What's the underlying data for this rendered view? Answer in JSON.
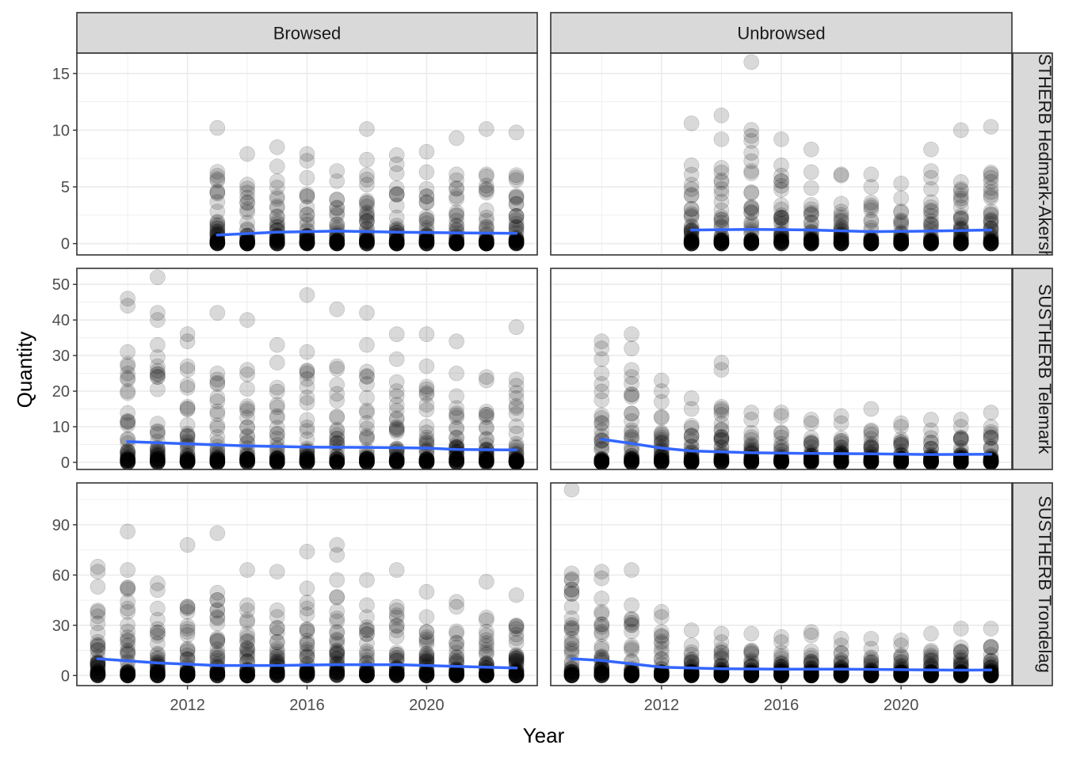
{
  "chart_data": {
    "type": "scatter",
    "xlabel": "Year",
    "ylabel": "Quantity",
    "col_facets": [
      "Browsed",
      "Unbrowsed"
    ],
    "row_facets": [
      {
        "label": "SUSTHERB Hedmark-Akershus",
        "ylim": [
          -1,
          16.8
        ],
        "yticks": [
          0,
          5,
          10,
          15
        ],
        "series": {
          "Browsed": {
            "years": [
              2013,
              2014,
              2015,
              2016,
              2017,
              2018,
              2019,
              2020,
              2021,
              2022,
              2023
            ],
            "max": [
              10.2,
              7.9,
              8.5,
              7.9,
              6.4,
              10.1,
              7.8,
              8.1,
              9.3,
              10.1,
              9.8
            ],
            "outliers": [
              [
                2013,
                5.7
              ],
              [
                2013,
                4.6
              ],
              [
                2014,
                5.2
              ],
              [
                2014,
                4.5
              ],
              [
                2015,
                6.8
              ],
              [
                2015,
                5.5
              ],
              [
                2016,
                7.3
              ],
              [
                2016,
                5.8
              ],
              [
                2017,
                5.5
              ],
              [
                2018,
                7.4
              ],
              [
                2018,
                5.2
              ],
              [
                2019,
                7.0
              ],
              [
                2019,
                6.2
              ],
              [
                2020,
                6.3
              ],
              [
                2021,
                6.1
              ],
              [
                2022,
                6.1
              ],
              [
                2023,
                5.6
              ],
              [
                2023,
                4.1
              ]
            ],
            "smooth": [
              [
                2013,
                0.75
              ],
              [
                2015,
                1.0
              ],
              [
                2017,
                1.1
              ],
              [
                2019,
                1.0
              ],
              [
                2021,
                0.95
              ],
              [
                2023,
                0.9
              ]
            ]
          },
          "Unbrowsed": {
            "years": [
              2013,
              2014,
              2015,
              2016,
              2017,
              2018,
              2019,
              2020,
              2021,
              2022,
              2023
            ],
            "max": [
              10.6,
              11.3,
              16.0,
              9.2,
              8.3,
              6.1,
              6.1,
              5.3,
              8.3,
              10.0,
              10.3
            ],
            "outliers": [
              [
                2013,
                6.9
              ],
              [
                2013,
                4.8
              ],
              [
                2014,
                9.2
              ],
              [
                2014,
                4.4
              ],
              [
                2015,
                8.0
              ],
              [
                2015,
                6.4
              ],
              [
                2016,
                6.9
              ],
              [
                2016,
                6.0
              ],
              [
                2017,
                6.3
              ],
              [
                2018,
                6.0
              ],
              [
                2019,
                5.0
              ],
              [
                2020,
                4.0
              ],
              [
                2021,
                6.4
              ],
              [
                2021,
                5.8
              ],
              [
                2022,
                4.8
              ],
              [
                2023,
                5.8
              ],
              [
                2023,
                4.9
              ]
            ],
            "smooth": [
              [
                2013,
                1.2
              ],
              [
                2015,
                1.25
              ],
              [
                2017,
                1.2
              ],
              [
                2019,
                1.05
              ],
              [
                2021,
                1.1
              ],
              [
                2023,
                1.2
              ]
            ]
          }
        }
      },
      {
        "label": "SUSTHERB Telemark",
        "ylim": [
          -2,
          54.5
        ],
        "yticks": [
          0,
          10,
          20,
          30,
          40,
          50
        ],
        "series": {
          "Browsed": {
            "years": [
              2010,
              2011,
              2012,
              2013,
              2014,
              2015,
              2016,
              2017,
              2018,
              2019,
              2020,
              2021,
              2022,
              2023
            ],
            "max": [
              46,
              52,
              36,
              42,
              40,
              33,
              47,
              43,
              42,
              36,
              36,
              34,
              24,
              38
            ],
            "outliers": [
              [
                2010,
                44
              ],
              [
                2010,
                31
              ],
              [
                2010,
                27
              ],
              [
                2010,
                25
              ],
              [
                2011,
                42
              ],
              [
                2011,
                40
              ],
              [
                2011,
                33
              ],
              [
                2011,
                27
              ],
              [
                2011,
                24
              ],
              [
                2012,
                34
              ],
              [
                2012,
                27
              ],
              [
                2012,
                26
              ],
              [
                2013,
                25
              ],
              [
                2013,
                22
              ],
              [
                2014,
                26
              ],
              [
                2015,
                28
              ],
              [
                2015,
                21
              ],
              [
                2016,
                31
              ],
              [
                2016,
                25
              ],
              [
                2017,
                27
              ],
              [
                2018,
                33
              ],
              [
                2018,
                22
              ],
              [
                2019,
                29
              ],
              [
                2019,
                20
              ],
              [
                2020,
                27
              ],
              [
                2021,
                25
              ],
              [
                2022,
                23
              ],
              [
                2023,
                18
              ]
            ],
            "smooth": [
              [
                2010,
                5.8
              ],
              [
                2012,
                5.2
              ],
              [
                2014,
                4.6
              ],
              [
                2016,
                4.3
              ],
              [
                2018,
                4.2
              ],
              [
                2020,
                4.0
              ],
              [
                2021,
                3.6
              ],
              [
                2023,
                3.5
              ]
            ]
          },
          "Unbrowsed": {
            "years": [
              2010,
              2011,
              2012,
              2013,
              2014,
              2015,
              2016,
              2017,
              2018,
              2019,
              2020,
              2021,
              2022,
              2023
            ],
            "max": [
              34,
              36,
              23,
              18,
              28,
              14,
              14,
              12,
              13,
              15,
              11,
              12,
              12,
              14
            ],
            "outliers": [
              [
                2010,
                32
              ],
              [
                2010,
                29
              ],
              [
                2010,
                25
              ],
              [
                2010,
                22
              ],
              [
                2011,
                32
              ],
              [
                2011,
                26
              ],
              [
                2011,
                24
              ],
              [
                2011,
                19
              ],
              [
                2012,
                20
              ],
              [
                2012,
                17
              ],
              [
                2013,
                15
              ],
              [
                2014,
                26
              ],
              [
                2014,
                15
              ],
              [
                2015,
                12
              ],
              [
                2016,
                13
              ],
              [
                2017,
                11
              ],
              [
                2018,
                11
              ],
              [
                2019,
                9
              ],
              [
                2020,
                10
              ],
              [
                2021,
                9
              ],
              [
                2022,
                10
              ],
              [
                2023,
                10
              ]
            ],
            "smooth": [
              [
                2010,
                6.5
              ],
              [
                2011,
                5.3
              ],
              [
                2012,
                4.0
              ],
              [
                2013,
                3.2
              ],
              [
                2015,
                2.7
              ],
              [
                2017,
                2.5
              ],
              [
                2019,
                2.4
              ],
              [
                2021,
                2.2
              ],
              [
                2023,
                2.3
              ]
            ]
          }
        }
      },
      {
        "label": "SUSTHERB Trondelag",
        "ylim": [
          -6,
          115
        ],
        "yticks": [
          0,
          30,
          60,
          90
        ],
        "series": {
          "Browsed": {
            "years": [
              2009,
              2010,
              2011,
              2012,
              2013,
              2014,
              2015,
              2016,
              2017,
              2018,
              2019,
              2020,
              2021,
              2022,
              2023
            ],
            "max": [
              65,
              86,
              55,
              78,
              85,
              63,
              62,
              74,
              78,
              57,
              63,
              50,
              44,
              56,
              48
            ],
            "outliers": [
              [
                2009,
                62
              ],
              [
                2009,
                53
              ],
              [
                2009,
                38
              ],
              [
                2010,
                63
              ],
              [
                2010,
                44
              ],
              [
                2010,
                40
              ],
              [
                2011,
                51
              ],
              [
                2011,
                40
              ],
              [
                2012,
                41
              ],
              [
                2012,
                38
              ],
              [
                2013,
                45
              ],
              [
                2013,
                35
              ],
              [
                2014,
                42
              ],
              [
                2014,
                32
              ],
              [
                2015,
                35
              ],
              [
                2016,
                52
              ],
              [
                2016,
                40
              ],
              [
                2017,
                72
              ],
              [
                2017,
                57
              ],
              [
                2017,
                47
              ],
              [
                2018,
                42
              ],
              [
                2018,
                35
              ],
              [
                2019,
                41
              ],
              [
                2019,
                36
              ],
              [
                2020,
                35
              ],
              [
                2021,
                41
              ],
              [
                2022,
                24
              ],
              [
                2023,
                30
              ]
            ],
            "smooth": [
              [
                2009,
                10
              ],
              [
                2011,
                7.5
              ],
              [
                2013,
                6
              ],
              [
                2015,
                6
              ],
              [
                2017,
                6.5
              ],
              [
                2019,
                6.5
              ],
              [
                2021,
                5.5
              ],
              [
                2023,
                4.5
              ]
            ]
          },
          "Unbrowsed": {
            "years": [
              2009,
              2010,
              2011,
              2012,
              2013,
              2014,
              2015,
              2016,
              2017,
              2018,
              2019,
              2020,
              2021,
              2022,
              2023
            ],
            "max": [
              111,
              62,
              63,
              38,
              27,
              25,
              25,
              23,
              26,
              22,
              22,
              21,
              25,
              28,
              28
            ],
            "outliers": [
              [
                2009,
                61
              ],
              [
                2009,
                49
              ],
              [
                2009,
                41
              ],
              [
                2010,
                58
              ],
              [
                2010,
                46
              ],
              [
                2010,
                38
              ],
              [
                2011,
                42
              ],
              [
                2011,
                30
              ],
              [
                2012,
                35
              ],
              [
                2012,
                26
              ],
              [
                2013,
                18
              ],
              [
                2014,
                20
              ],
              [
                2015,
                13
              ],
              [
                2016,
                20
              ],
              [
                2017,
                24
              ],
              [
                2018,
                18
              ],
              [
                2019,
                16
              ],
              [
                2020,
                18
              ],
              [
                2021,
                12
              ],
              [
                2022,
                14
              ],
              [
                2023,
                17
              ]
            ],
            "smooth": [
              [
                2009,
                10
              ],
              [
                2010,
                9
              ],
              [
                2011,
                7
              ],
              [
                2012,
                5
              ],
              [
                2014,
                4
              ],
              [
                2016,
                3.8
              ],
              [
                2018,
                3.8
              ],
              [
                2020,
                3.5
              ],
              [
                2022,
                3.2
              ],
              [
                2023,
                3.3
              ]
            ]
          }
        }
      }
    ],
    "xlim": [
      2008.3,
      2023.7
    ],
    "xticks": [
      2012,
      2016,
      2020
    ],
    "grid": true,
    "point_color": "#000000",
    "point_alpha": 0.15,
    "smooth_color": "#3366FF",
    "strip_fill": "#d9d9d9"
  }
}
